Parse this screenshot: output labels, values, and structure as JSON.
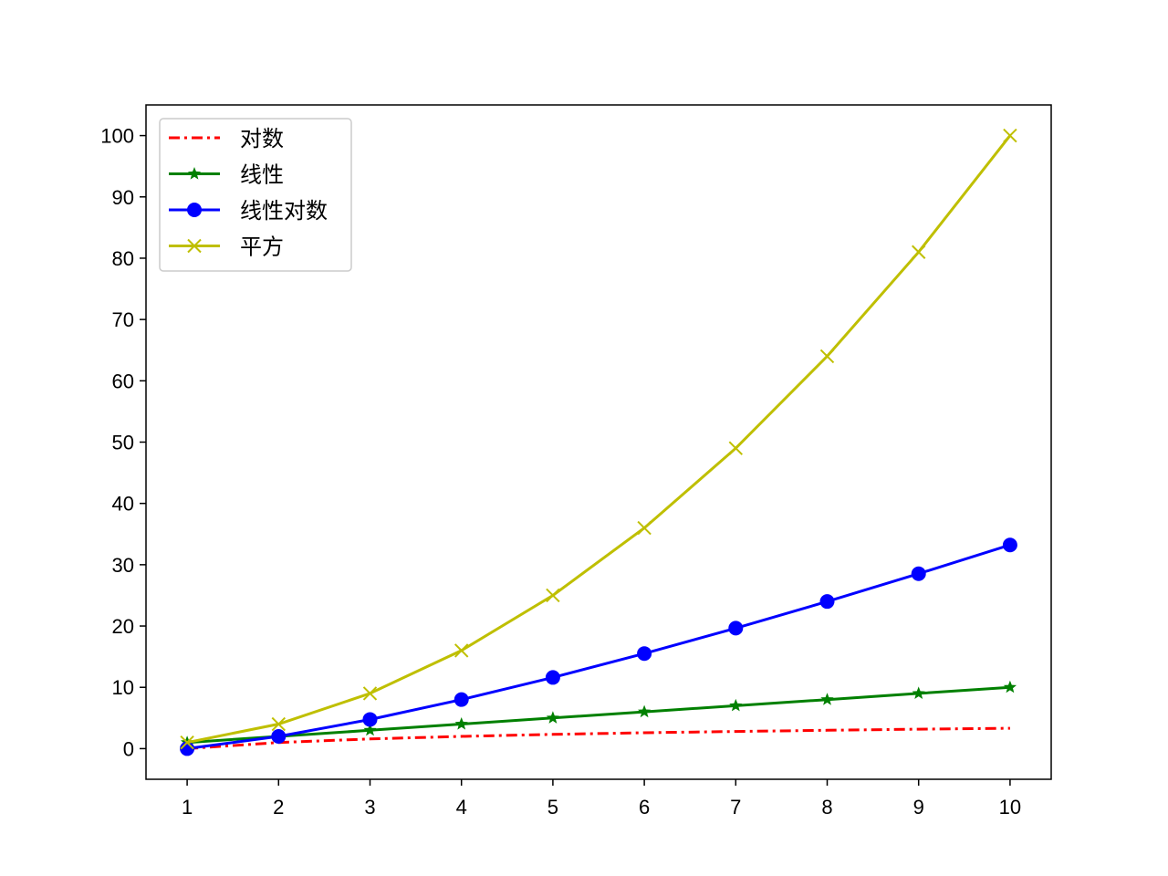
{
  "chart_data": {
    "type": "line",
    "title": "",
    "xlabel": "",
    "ylabel": "",
    "xlim": [
      0.55,
      10.45
    ],
    "ylim": [
      -5,
      105
    ],
    "xticks": [
      1,
      2,
      3,
      4,
      5,
      6,
      7,
      8,
      9,
      10
    ],
    "yticks": [
      0,
      10,
      20,
      30,
      40,
      50,
      60,
      70,
      80,
      90,
      100
    ],
    "grid": false,
    "legend_position": "top-left",
    "x": [
      1,
      2,
      3,
      4,
      5,
      6,
      7,
      8,
      9,
      10
    ],
    "series": [
      {
        "name": "对数",
        "color": "#ff0000",
        "linestyle": "dash-dot",
        "marker": "none",
        "values": [
          0,
          1,
          1.585,
          2,
          2.322,
          2.585,
          2.807,
          3,
          3.17,
          3.322
        ]
      },
      {
        "name": "线性",
        "color": "#008000",
        "linestyle": "solid",
        "marker": "star",
        "values": [
          1,
          2,
          3,
          4,
          5,
          6,
          7,
          8,
          9,
          10
        ]
      },
      {
        "name": "线性对数",
        "color": "#0000ff",
        "linestyle": "solid",
        "marker": "circle",
        "values": [
          0,
          2,
          4.755,
          8,
          11.61,
          15.51,
          19.65,
          24,
          28.53,
          33.22
        ]
      },
      {
        "name": "平方",
        "color": "#bfbf00",
        "linestyle": "solid",
        "marker": "x",
        "values": [
          1,
          4,
          9,
          16,
          25,
          36,
          49,
          64,
          81,
          100
        ]
      }
    ]
  }
}
